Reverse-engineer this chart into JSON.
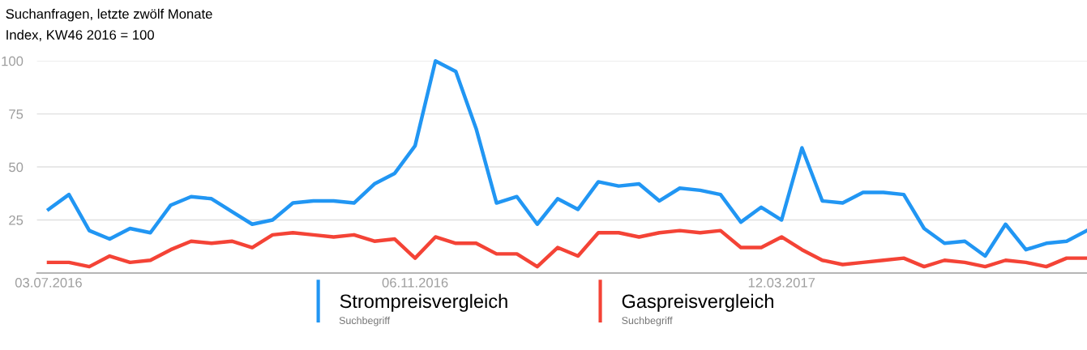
{
  "chart_data": {
    "type": "line",
    "title": "Suchanfragen, letzte zwölf Monate",
    "subtitle": "Index, KW46 2016 = 100",
    "x": [
      "2016-07-03",
      "2016-07-10",
      "2016-07-17",
      "2016-07-24",
      "2016-07-31",
      "2016-08-07",
      "2016-08-14",
      "2016-08-21",
      "2016-08-28",
      "2016-09-04",
      "2016-09-11",
      "2016-09-18",
      "2016-09-25",
      "2016-10-02",
      "2016-10-09",
      "2016-10-16",
      "2016-10-23",
      "2016-10-30",
      "2016-11-06",
      "2016-11-13",
      "2016-11-20",
      "2016-11-27",
      "2016-12-04",
      "2016-12-11",
      "2016-12-18",
      "2016-12-25",
      "2017-01-01",
      "2017-01-08",
      "2017-01-15",
      "2017-01-22",
      "2017-01-29",
      "2017-02-05",
      "2017-02-12",
      "2017-02-19",
      "2017-02-26",
      "2017-03-05",
      "2017-03-12",
      "2017-03-19",
      "2017-03-26",
      "2017-04-02",
      "2017-04-09",
      "2017-04-16",
      "2017-04-23",
      "2017-04-30",
      "2017-05-07",
      "2017-05-14",
      "2017-05-21",
      "2017-05-28",
      "2017-06-04",
      "2017-06-11",
      "2017-06-18",
      "2017-06-25"
    ],
    "series": [
      {
        "name": "Strompreisvergleich",
        "color": "#2196f3",
        "values": [
          30,
          37,
          20,
          16,
          21,
          19,
          32,
          36,
          35,
          29,
          23,
          25,
          33,
          34,
          34,
          33,
          42,
          47,
          60,
          100,
          95,
          68,
          33,
          36,
          23,
          35,
          30,
          43,
          41,
          42,
          34,
          40,
          39,
          37,
          24,
          31,
          25,
          59,
          34,
          33,
          38,
          38,
          37,
          21,
          14,
          15,
          8,
          23,
          11,
          14,
          15,
          20
        ]
      },
      {
        "name": "Gaspreisvergleich",
        "color": "#f44336",
        "values": [
          5,
          5,
          3,
          8,
          5,
          6,
          11,
          15,
          14,
          15,
          12,
          18,
          19,
          18,
          17,
          18,
          15,
          16,
          7,
          17,
          14,
          14,
          9,
          9,
          3,
          12,
          8,
          19,
          19,
          17,
          19,
          20,
          19,
          20,
          12,
          12,
          17,
          11,
          6,
          4,
          5,
          6,
          7,
          3,
          6,
          5,
          3,
          6,
          5,
          3,
          7,
          7
        ]
      }
    ],
    "xlim": [
      "2016-06-29",
      "2017-06-25"
    ],
    "xticks": [
      {
        "value": "2016-07-03",
        "label": "03.07.2016"
      },
      {
        "value": "2016-11-06",
        "label": "06.11.2016"
      },
      {
        "value": "2017-03-12",
        "label": "12.03.2017"
      }
    ],
    "ylim": [
      0,
      100
    ],
    "yticks": [
      25,
      50,
      75,
      100
    ],
    "grid": "y",
    "legend": "bottom",
    "marker": "none",
    "line_style": "solid",
    "annotations": [
      "Suchbegriff",
      "Suchbegriff"
    ]
  }
}
